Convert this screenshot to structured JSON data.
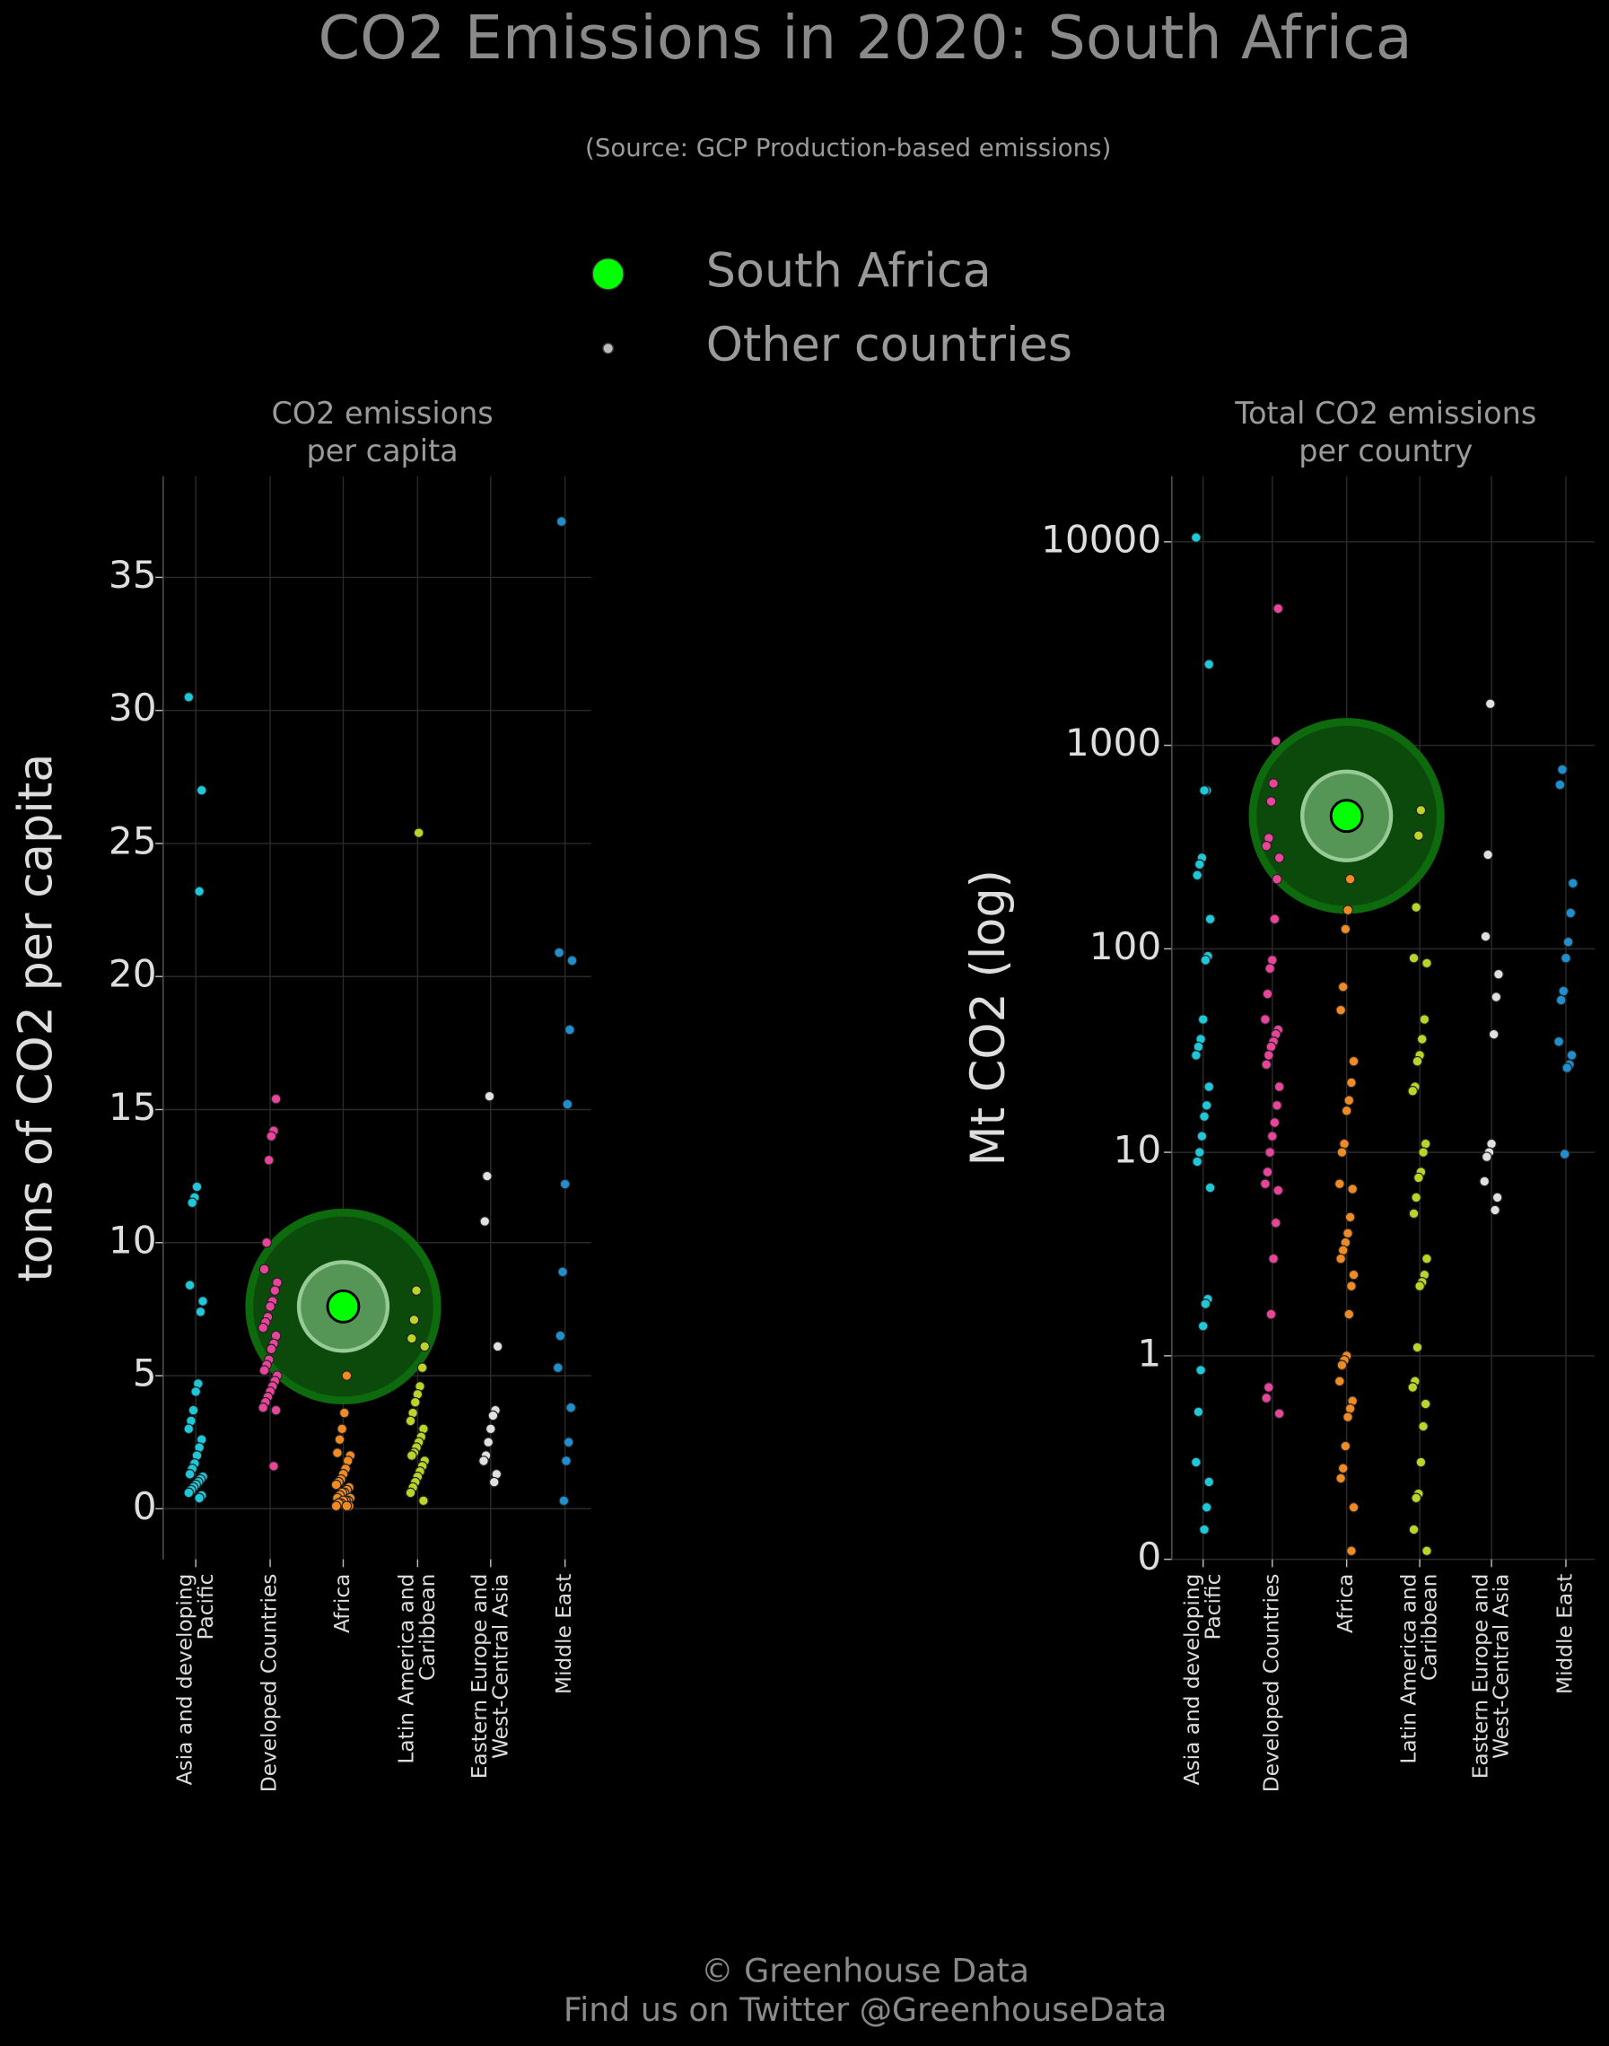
{
  "header": {
    "title": "CO2 Emissions in 2020: South Africa",
    "subtitle": "(Source: GCP Production-based emissions)"
  },
  "legend": [
    {
      "name": "South Africa",
      "color": "#00ff00"
    },
    {
      "name": "Other countries",
      "color": "#bbbbbb"
    }
  ],
  "footer": [
    "© Greenhouse Data",
    "Find us on Twitter @GreenhouseData"
  ],
  "chart_data": [
    {
      "type": "strip",
      "title": [
        "CO2 emissions",
        "per capita"
      ],
      "y_label": "tons of CO2 per capita",
      "categories": [
        "Asia and developing\nPacific",
        "Developed Countries",
        "Africa",
        "Latin America and\nCaribbean",
        "Eastern Europe and\nWest-Central Asia",
        "Middle East"
      ],
      "ylim": [
        -1.9,
        38.8
      ],
      "yticks": [
        0,
        5,
        10,
        15,
        20,
        25,
        30,
        35
      ],
      "log": false,
      "grid": true,
      "series": [
        {
          "color": "#1ec8d8",
          "values": [
            30.5,
            27.0,
            23.2,
            12.1,
            11.7,
            11.5,
            8.4,
            7.8,
            7.4,
            4.7,
            4.4,
            3.7,
            3.3,
            3.0,
            2.6,
            2.3,
            2.0,
            1.7,
            1.5,
            1.3,
            1.2,
            1.1,
            1.0,
            0.9,
            0.8,
            0.7,
            0.6,
            0.5,
            0.4
          ]
        },
        {
          "color": "#e8449a",
          "values": [
            15.4,
            14.2,
            14.0,
            13.1,
            10.0,
            9.0,
            8.5,
            8.2,
            7.8,
            7.6,
            7.2,
            7.0,
            6.8,
            6.5,
            6.2,
            6.0,
            5.6,
            5.4,
            5.2,
            5.0,
            4.8,
            4.6,
            4.4,
            4.2,
            4.0,
            3.8,
            3.7,
            1.6
          ]
        },
        {
          "color": "#f08a24",
          "values": [
            5.0,
            3.6,
            3.0,
            2.6,
            2.1,
            2.0,
            1.8,
            1.5,
            1.3,
            1.1,
            1.0,
            0.9,
            0.8,
            0.7,
            0.6,
            0.6,
            0.5,
            0.4,
            0.4,
            0.3,
            0.3,
            0.3,
            0.2,
            0.2,
            0.1,
            0.1,
            0.1
          ]
        },
        {
          "color": "#bcd42a",
          "values": [
            25.4,
            8.2,
            7.1,
            6.4,
            6.1,
            5.3,
            4.6,
            4.3,
            4.0,
            3.6,
            3.3,
            3.0,
            2.7,
            2.5,
            2.3,
            2.1,
            2.0,
            1.8,
            1.6,
            1.4,
            1.2,
            1.0,
            0.8,
            0.6,
            0.3
          ]
        },
        {
          "color": "#e0e0e0",
          "values": [
            15.5,
            12.5,
            10.8,
            6.1,
            3.7,
            3.5,
            3.0,
            2.5,
            2.0,
            1.8,
            1.3,
            1.0
          ]
        },
        {
          "color": "#1f8fd0",
          "values": [
            37.1,
            20.9,
            20.6,
            18.0,
            15.2,
            12.2,
            8.9,
            6.5,
            5.3,
            3.8,
            2.5,
            1.8,
            0.3
          ]
        }
      ],
      "highlight": {
        "category": 2,
        "value": 7.6,
        "color": "#00ff00"
      }
    },
    {
      "type": "strip",
      "title": [
        "Total CO2 emissions",
        "per country"
      ],
      "y_label": "Mt CO2 (log)",
      "categories": [
        "Asia and developing\nPacific",
        "Developed Countries",
        "Africa",
        "Latin America and\nCaribbean",
        "Eastern Europe and\nWest-Central Asia",
        "Middle East"
      ],
      "ylim": [
        0.1,
        21000
      ],
      "yticks": [
        {
          "value": 0.1,
          "label": "0"
        },
        1,
        10,
        100,
        1000,
        10000
      ],
      "log": true,
      "grid": true,
      "series": [
        {
          "color": "#1ec8d8",
          "values": [
            10500,
            2500,
            600,
            600,
            280,
            260,
            230,
            140,
            92,
            88,
            45,
            36,
            33,
            30,
            21,
            17,
            15,
            12,
            10,
            9,
            6.7,
            1.9,
            1.8,
            1.4,
            0.85,
            0.53,
            0.3,
            0.24,
            0.18,
            0.14
          ]
        },
        {
          "color": "#e8449a",
          "values": [
            4700,
            1050,
            650,
            530,
            350,
            320,
            280,
            220,
            140,
            88,
            80,
            60,
            45,
            40,
            38,
            35,
            33,
            30,
            27,
            21,
            17,
            14,
            12,
            10,
            8,
            7,
            6.5,
            4.5,
            3.0,
            1.6,
            0.7,
            0.62,
            0.52
          ]
        },
        {
          "color": "#f08a24",
          "values": [
            220,
            155,
            125,
            65,
            50,
            28,
            22,
            18,
            16,
            11,
            10,
            7,
            6.6,
            4.8,
            4.0,
            3.6,
            3.3,
            3.0,
            2.5,
            2.2,
            1.6,
            1.0,
            0.95,
            0.9,
            0.75,
            0.6,
            0.55,
            0.5,
            0.36,
            0.28,
            0.25,
            0.18,
            0.11
          ]
        },
        {
          "color": "#bcd42a",
          "values": [
            480,
            360,
            160,
            90,
            85,
            45,
            36,
            30,
            28,
            21,
            20,
            11,
            10,
            8,
            7.5,
            6,
            5,
            3,
            2.5,
            2.3,
            2.2,
            1.1,
            0.75,
            0.7,
            0.58,
            0.45,
            0.3,
            0.21,
            0.2,
            0.14,
            0.11
          ]
        },
        {
          "color": "#e0e0e0",
          "values": [
            1600,
            290,
            115,
            75,
            58,
            38,
            11,
            10,
            9.5,
            7.2,
            6,
            5.2
          ]
        },
        {
          "color": "#1f8fd0",
          "values": [
            760,
            640,
            210,
            150,
            108,
            90,
            62,
            56,
            35,
            30,
            27,
            26,
            9.8
          ]
        }
      ],
      "highlight": {
        "category": 2,
        "value": 450,
        "color": "#00ff00"
      }
    }
  ]
}
